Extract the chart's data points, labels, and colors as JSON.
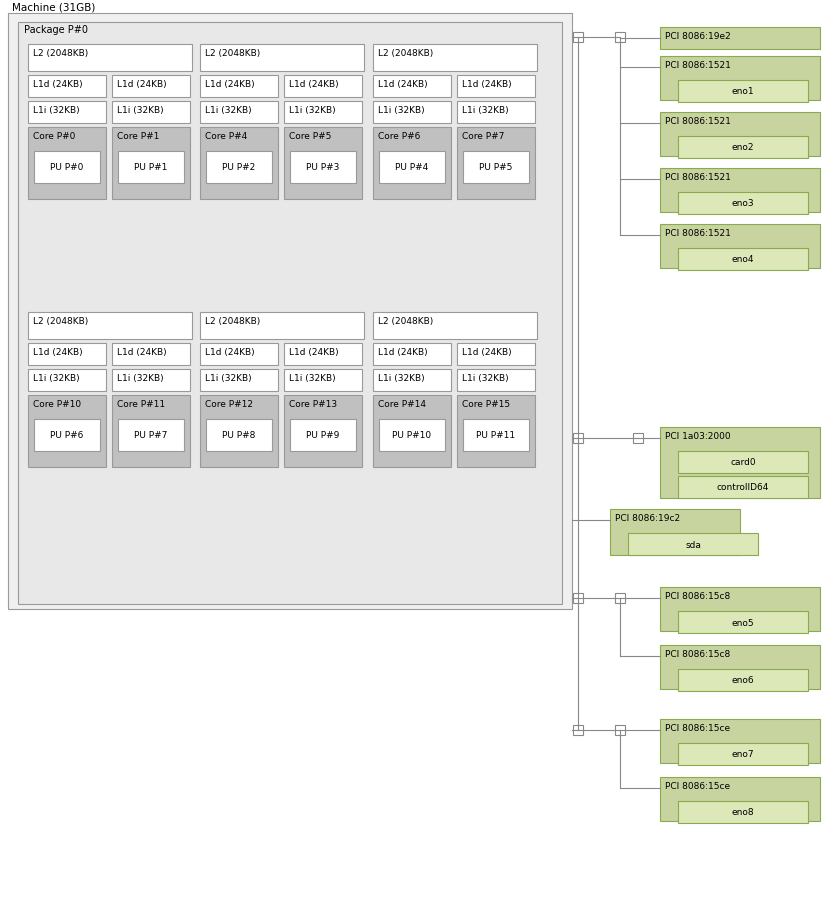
{
  "title": "Machine (31GB)",
  "pkg_label": "Package P#0",
  "bg_machine": "#f0f0f0",
  "bg_package": "#e8e8e8",
  "bg_l2": "#ffffff",
  "bg_l1d": "#ffffff",
  "bg_l1i": "#ffffff",
  "bg_core": "#c0c0c0",
  "bg_pu": "#ffffff",
  "bg_pci": "#c8d4a0",
  "bg_child": "#dce8b8",
  "edge_color": "#999999",
  "pci_edge": "#8aaa50",
  "line_color": "#888888",
  "text_color": "#000000",
  "font_size": 7.0,
  "row1_groups": [
    {
      "l2": "L2 (2048KB)",
      "cores": [
        {
          "core": "Core P#0",
          "pu": "PU P#0",
          "l1d": "L1d (24KB)",
          "l1i": "L1i (32KB)"
        },
        {
          "core": "Core P#1",
          "pu": "PU P#1",
          "l1d": "L1d (24KB)",
          "l1i": "L1i (32KB)"
        }
      ]
    },
    {
      "l2": "L2 (2048KB)",
      "cores": [
        {
          "core": "Core P#4",
          "pu": "PU P#2",
          "l1d": "L1d (24KB)",
          "l1i": "L1i (32KB)"
        },
        {
          "core": "Core P#5",
          "pu": "PU P#3",
          "l1d": "L1d (24KB)",
          "l1i": "L1i (32KB)"
        }
      ]
    },
    {
      "l2": "L2 (2048KB)",
      "cores": [
        {
          "core": "Core P#6",
          "pu": "PU P#4",
          "l1d": "L1d (24KB)",
          "l1i": "L1i (32KB)"
        },
        {
          "core": "Core P#7",
          "pu": "PU P#5",
          "l1d": "L1d (24KB)",
          "l1i": "L1i (32KB)"
        }
      ]
    }
  ],
  "row2_groups": [
    {
      "l2": "L2 (2048KB)",
      "cores": [
        {
          "core": "Core P#10",
          "pu": "PU P#6",
          "l1d": "L1d (24KB)",
          "l1i": "L1i (32KB)"
        },
        {
          "core": "Core P#11",
          "pu": "PU P#7",
          "l1d": "L1d (24KB)",
          "l1i": "L1i (32KB)"
        }
      ]
    },
    {
      "l2": "L2 (2048KB)",
      "cores": [
        {
          "core": "Core P#12",
          "pu": "PU P#8",
          "l1d": "L1d (24KB)",
          "l1i": "L1i (32KB)"
        },
        {
          "core": "Core P#13",
          "pu": "PU P#9",
          "l1d": "L1d (24KB)",
          "l1i": "L1i (32KB)"
        }
      ]
    },
    {
      "l2": "L2 (2048KB)",
      "cores": [
        {
          "core": "Core P#14",
          "pu": "PU P#10",
          "l1d": "L1d (24KB)",
          "l1i": "L1i (32KB)"
        },
        {
          "core": "Core P#15",
          "pu": "PU P#11",
          "l1d": "L1d (24KB)",
          "l1i": "L1i (32KB)"
        }
      ]
    }
  ]
}
